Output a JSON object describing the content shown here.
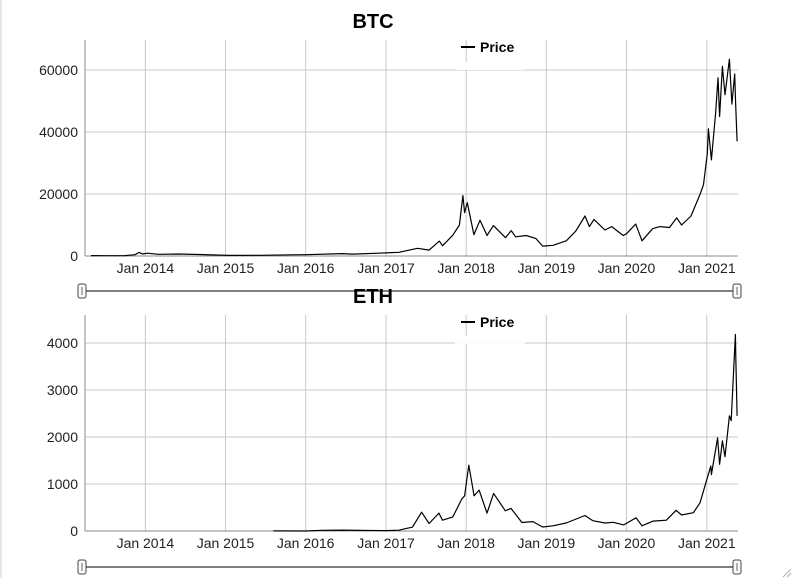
{
  "chart_data": [
    {
      "type": "line",
      "title": "BTC",
      "xlabel": "",
      "ylabel": "",
      "ylim": [
        0,
        70000
      ],
      "yticks": [
        0,
        20000,
        40000,
        60000
      ],
      "xticks": [
        "Jan 2014",
        "Jan 2015",
        "Jan 2016",
        "Jan 2017",
        "Jan 2018",
        "Jan 2019",
        "Jan 2020",
        "Jan 2021"
      ],
      "grid": true,
      "legend_position": "top-center",
      "range_slider": true,
      "color": "#000000",
      "series": [
        {
          "name": "Price",
          "points": [
            [
              "2013-04-28",
              135
            ],
            [
              "2013-07-01",
              90
            ],
            [
              "2013-10-01",
              125
            ],
            [
              "2013-11-15",
              420
            ],
            [
              "2013-12-04",
              1150
            ],
            [
              "2013-12-20",
              650
            ],
            [
              "2014-01-10",
              900
            ],
            [
              "2014-03-01",
              550
            ],
            [
              "2014-06-01",
              640
            ],
            [
              "2014-09-01",
              480
            ],
            [
              "2015-01-14",
              180
            ],
            [
              "2015-06-01",
              230
            ],
            [
              "2015-11-04",
              400
            ],
            [
              "2016-01-01",
              430
            ],
            [
              "2016-06-18",
              760
            ],
            [
              "2016-08-01",
              600
            ],
            [
              "2017-01-01",
              1000
            ],
            [
              "2017-03-01",
              1200
            ],
            [
              "2017-05-25",
              2500
            ],
            [
              "2017-07-16",
              1900
            ],
            [
              "2017-09-01",
              4800
            ],
            [
              "2017-09-15",
              3300
            ],
            [
              "2017-11-01",
              6700
            ],
            [
              "2017-12-01",
              10000
            ],
            [
              "2017-12-17",
              19500
            ],
            [
              "2017-12-25",
              14000
            ],
            [
              "2018-01-06",
              17200
            ],
            [
              "2018-02-05",
              6900
            ],
            [
              "2018-03-05",
              11500
            ],
            [
              "2018-04-06",
              6600
            ],
            [
              "2018-05-05",
              9800
            ],
            [
              "2018-06-29",
              5900
            ],
            [
              "2018-07-25",
              8200
            ],
            [
              "2018-08-14",
              6200
            ],
            [
              "2018-10-01",
              6600
            ],
            [
              "2018-11-15",
              5600
            ],
            [
              "2018-12-15",
              3200
            ],
            [
              "2019-02-01",
              3450
            ],
            [
              "2019-04-02",
              4900
            ],
            [
              "2019-05-15",
              8000
            ],
            [
              "2019-06-26",
              12900
            ],
            [
              "2019-07-16",
              9500
            ],
            [
              "2019-08-06",
              11800
            ],
            [
              "2019-09-25",
              8400
            ],
            [
              "2019-10-26",
              9500
            ],
            [
              "2019-12-17",
              6600
            ],
            [
              "2020-01-01",
              7200
            ],
            [
              "2020-02-12",
              10300
            ],
            [
              "2020-03-12",
              4900
            ],
            [
              "2020-04-29",
              8800
            ],
            [
              "2020-06-01",
              9500
            ],
            [
              "2020-07-15",
              9200
            ],
            [
              "2020-08-17",
              12300
            ],
            [
              "2020-09-08",
              10000
            ],
            [
              "2020-10-21",
              12900
            ],
            [
              "2020-11-30",
              19700
            ],
            [
              "2020-12-17",
              23000
            ],
            [
              "2021-01-03",
              33000
            ],
            [
              "2021-01-08",
              41000
            ],
            [
              "2021-01-22",
              31000
            ],
            [
              "2021-02-10",
              46000
            ],
            [
              "2021-02-21",
              57500
            ],
            [
              "2021-02-28",
              45000
            ],
            [
              "2021-03-13",
              61200
            ],
            [
              "2021-03-25",
              52000
            ],
            [
              "2021-04-14",
              63500
            ],
            [
              "2021-04-25",
              49000
            ],
            [
              "2021-05-08",
              58700
            ],
            [
              "2021-05-12",
              49500
            ],
            [
              "2021-05-19",
              37000
            ]
          ]
        }
      ]
    },
    {
      "type": "line",
      "title": "ETH",
      "xlabel": "",
      "ylabel": "",
      "ylim": [
        0,
        4600
      ],
      "yticks": [
        0,
        1000,
        2000,
        3000,
        4000
      ],
      "xticks": [
        "Jan 2014",
        "Jan 2015",
        "Jan 2016",
        "Jan 2017",
        "Jan 2018",
        "Jan 2019",
        "Jan 2020",
        "Jan 2021"
      ],
      "grid": true,
      "legend_position": "top-center",
      "range_slider": true,
      "color": "#000000",
      "series": [
        {
          "name": "Price",
          "points": [
            [
              "2015-08-07",
              2
            ],
            [
              "2016-01-01",
              1
            ],
            [
              "2016-03-13",
              14
            ],
            [
              "2016-06-17",
              20
            ],
            [
              "2016-09-01",
              12
            ],
            [
              "2017-01-01",
              8
            ],
            [
              "2017-03-01",
              17
            ],
            [
              "2017-04-01",
              50
            ],
            [
              "2017-05-01",
              80
            ],
            [
              "2017-06-12",
              400
            ],
            [
              "2017-07-16",
              160
            ],
            [
              "2017-08-30",
              380
            ],
            [
              "2017-09-15",
              230
            ],
            [
              "2017-11-01",
              300
            ],
            [
              "2017-12-12",
              680
            ],
            [
              "2017-12-25",
              750
            ],
            [
              "2018-01-13",
              1400
            ],
            [
              "2018-02-06",
              750
            ],
            [
              "2018-03-01",
              870
            ],
            [
              "2018-04-06",
              380
            ],
            [
              "2018-05-06",
              800
            ],
            [
              "2018-06-28",
              430
            ],
            [
              "2018-07-24",
              480
            ],
            [
              "2018-09-12",
              180
            ],
            [
              "2018-11-01",
              200
            ],
            [
              "2018-12-15",
              85
            ],
            [
              "2019-02-01",
              110
            ],
            [
              "2019-04-01",
              170
            ],
            [
              "2019-06-26",
              330
            ],
            [
              "2019-08-01",
              220
            ],
            [
              "2019-09-25",
              170
            ],
            [
              "2019-11-01",
              185
            ],
            [
              "2019-12-20",
              130
            ],
            [
              "2020-02-14",
              280
            ],
            [
              "2020-03-12",
              110
            ],
            [
              "2020-05-01",
              210
            ],
            [
              "2020-07-01",
              230
            ],
            [
              "2020-08-14",
              440
            ],
            [
              "2020-09-08",
              340
            ],
            [
              "2020-11-01",
              390
            ],
            [
              "2020-12-01",
              600
            ],
            [
              "2021-01-19",
              1380
            ],
            [
              "2021-01-22",
              1200
            ],
            [
              "2021-02-19",
              1980
            ],
            [
              "2021-02-28",
              1420
            ],
            [
              "2021-03-13",
              1920
            ],
            [
              "2021-03-25",
              1580
            ],
            [
              "2021-04-14",
              2450
            ],
            [
              "2021-04-22",
              2350
            ],
            [
              "2021-05-03",
              3400
            ],
            [
              "2021-05-11",
              4180
            ],
            [
              "2021-05-13",
              3700
            ],
            [
              "2021-05-19",
              2450
            ]
          ]
        }
      ]
    }
  ]
}
